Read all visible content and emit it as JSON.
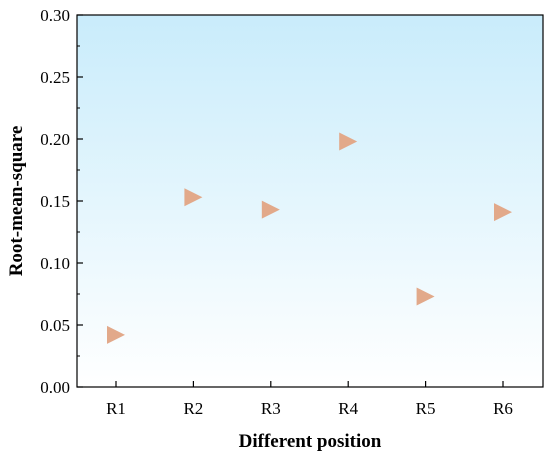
{
  "chart_data": {
    "type": "scatter",
    "xlabel": "Different position",
    "ylabel": "Root-mean-square",
    "categories": [
      "R1",
      "R2",
      "R3",
      "R4",
      "R5",
      "R6"
    ],
    "values": [
      0.042,
      0.153,
      0.143,
      0.198,
      0.073,
      0.141
    ],
    "ylim": [
      0,
      0.3
    ],
    "y_ticks": [
      "0.00",
      "0.05",
      "0.10",
      "0.15",
      "0.20",
      "0.25",
      "0.30"
    ],
    "marker": "right-triangle",
    "marker_color": "#e2a98a",
    "background_gradient": [
      "#c9ecfb",
      "#ffffff"
    ],
    "grid": false,
    "legend": "none"
  }
}
